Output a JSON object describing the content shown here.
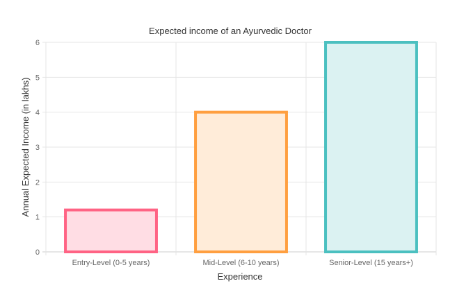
{
  "chart_data": {
    "type": "bar",
    "title": "Expected income of an Ayurvedic Doctor",
    "xlabel": "Experience",
    "ylabel": "Annual Expected Income (in lakhs)",
    "categories": [
      "Entry-Level (0-5 years)",
      "Mid-Level (6-10 years)",
      "Senior-Level (15 years+)"
    ],
    "values": [
      1.2,
      4,
      6
    ],
    "ylim": [
      0,
      6
    ],
    "yticks": [
      "0",
      "1",
      "2",
      "3",
      "4",
      "5",
      "6"
    ],
    "grid": true,
    "colors": {
      "border": [
        "#ff6384",
        "#ff9f40",
        "#4bc0c0"
      ],
      "fill": [
        "#ffdde4",
        "#ffecd9",
        "#dbf2f2"
      ]
    }
  }
}
